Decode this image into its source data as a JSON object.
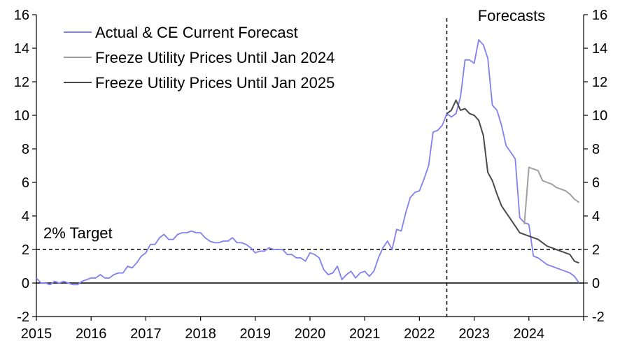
{
  "chart_data": {
    "type": "line",
    "xlim": [
      2015.0,
      2025.0
    ],
    "ylim": [
      -2,
      16
    ],
    "x_ticks": [
      "2015",
      "2016",
      "2017",
      "2018",
      "2019",
      "2020",
      "2021",
      "2022",
      "2023",
      "2024"
    ],
    "x_tick_values": [
      2015,
      2016,
      2017,
      2018,
      2019,
      2020,
      2021,
      2022,
      2023,
      2024
    ],
    "y_ticks": [
      "-2",
      "0",
      "2",
      "4",
      "6",
      "8",
      "10",
      "12",
      "14",
      "16"
    ],
    "y_tick_values": [
      -2,
      0,
      2,
      4,
      6,
      8,
      10,
      12,
      14,
      16
    ],
    "grid": false,
    "legend_position": "top-left",
    "target": {
      "value": 2,
      "label": "2% Target"
    },
    "forecast_start": {
      "x": 2022.5,
      "label": "Forecasts"
    },
    "series": [
      {
        "name": "Actual & CE Current Forecast",
        "color": "#8080f0",
        "x": [
          2015.0,
          2015.083,
          2015.167,
          2015.25,
          2015.333,
          2015.417,
          2015.5,
          2015.583,
          2015.667,
          2015.75,
          2015.833,
          2015.917,
          2016.0,
          2016.083,
          2016.167,
          2016.25,
          2016.333,
          2016.417,
          2016.5,
          2016.583,
          2016.667,
          2016.75,
          2016.833,
          2016.917,
          2017.0,
          2017.083,
          2017.167,
          2017.25,
          2017.333,
          2017.417,
          2017.5,
          2017.583,
          2017.667,
          2017.75,
          2017.833,
          2017.917,
          2018.0,
          2018.083,
          2018.167,
          2018.25,
          2018.333,
          2018.417,
          2018.5,
          2018.583,
          2018.667,
          2018.75,
          2018.833,
          2018.917,
          2019.0,
          2019.083,
          2019.167,
          2019.25,
          2019.333,
          2019.417,
          2019.5,
          2019.583,
          2019.667,
          2019.75,
          2019.833,
          2019.917,
          2020.0,
          2020.083,
          2020.167,
          2020.25,
          2020.333,
          2020.417,
          2020.5,
          2020.583,
          2020.667,
          2020.75,
          2020.833,
          2020.917,
          2021.0,
          2021.083,
          2021.167,
          2021.25,
          2021.333,
          2021.417,
          2021.5,
          2021.583,
          2021.667,
          2021.75,
          2021.833,
          2021.917,
          2022.0,
          2022.083,
          2022.167,
          2022.25,
          2022.333,
          2022.417,
          2022.5,
          2022.583,
          2022.667,
          2022.75,
          2022.833,
          2022.917,
          2023.0,
          2023.083,
          2023.167,
          2023.25,
          2023.333,
          2023.417,
          2023.5,
          2023.583,
          2023.667,
          2023.75,
          2023.833,
          2023.917,
          2024.0,
          2024.083,
          2024.167,
          2024.25,
          2024.333,
          2024.417,
          2024.5,
          2024.583,
          2024.667,
          2024.75,
          2024.833,
          2024.917
        ],
        "values": [
          0.3,
          0.0,
          0.0,
          -0.1,
          0.1,
          0.0,
          0.1,
          0.0,
          -0.1,
          -0.1,
          0.1,
          0.2,
          0.3,
          0.3,
          0.5,
          0.3,
          0.3,
          0.5,
          0.6,
          0.6,
          1.0,
          0.9,
          1.2,
          1.6,
          1.8,
          2.3,
          2.3,
          2.7,
          2.9,
          2.6,
          2.6,
          2.9,
          3.0,
          3.0,
          3.1,
          3.0,
          3.0,
          2.7,
          2.5,
          2.4,
          2.4,
          2.5,
          2.5,
          2.7,
          2.4,
          2.4,
          2.3,
          2.1,
          1.8,
          1.9,
          1.9,
          2.1,
          2.0,
          2.0,
          2.0,
          1.7,
          1.7,
          1.5,
          1.5,
          1.3,
          1.8,
          1.7,
          1.5,
          0.8,
          0.5,
          0.6,
          1.0,
          0.2,
          0.5,
          0.7,
          0.3,
          0.6,
          0.7,
          0.4,
          0.7,
          1.5,
          2.1,
          2.5,
          2.0,
          3.2,
          3.1,
          4.2,
          5.1,
          5.4,
          5.5,
          6.2,
          7.0,
          9.0,
          9.1,
          9.4,
          10.1,
          9.9,
          10.1,
          11.1,
          13.3,
          13.3,
          13.1,
          14.5,
          14.2,
          13.4,
          10.6,
          10.3,
          9.4,
          8.2,
          7.8,
          7.4,
          3.9,
          3.6,
          3.5,
          1.6,
          1.5,
          1.3,
          1.1,
          1.0,
          0.9,
          0.8,
          0.7,
          0.6,
          0.4,
          0.0
        ]
      },
      {
        "name": "Freeze Utility Prices Until Jan 2024",
        "color": "#a0a0a0",
        "x": [
          2023.917,
          2024.0,
          2024.083,
          2024.167,
          2024.25,
          2024.333,
          2024.417,
          2024.5,
          2024.583,
          2024.667,
          2024.75,
          2024.833,
          2024.917
        ],
        "values": [
          3.5,
          6.9,
          6.8,
          6.7,
          6.1,
          6.0,
          5.9,
          5.7,
          5.6,
          5.5,
          5.3,
          5.0,
          4.8
        ]
      },
      {
        "name": "Freeze Utility Prices Until Jan 2025",
        "color": "#4a4a4a",
        "x": [
          2022.5,
          2022.583,
          2022.667,
          2022.75,
          2022.833,
          2022.917,
          2023.0,
          2023.083,
          2023.167,
          2023.25,
          2023.333,
          2023.417,
          2023.5,
          2023.583,
          2023.667,
          2023.75,
          2023.833,
          2023.917,
          2024.0,
          2024.083,
          2024.167,
          2024.25,
          2024.333,
          2024.417,
          2024.5,
          2024.583,
          2024.667,
          2024.75,
          2024.833,
          2024.917
        ],
        "values": [
          10.1,
          10.3,
          10.9,
          10.3,
          10.4,
          10.1,
          10.0,
          9.7,
          8.8,
          6.6,
          6.1,
          5.3,
          4.6,
          4.2,
          3.8,
          3.4,
          3.0,
          2.9,
          2.8,
          2.7,
          2.6,
          2.4,
          2.2,
          2.1,
          2.0,
          1.9,
          1.8,
          1.7,
          1.3,
          1.2
        ]
      }
    ]
  }
}
